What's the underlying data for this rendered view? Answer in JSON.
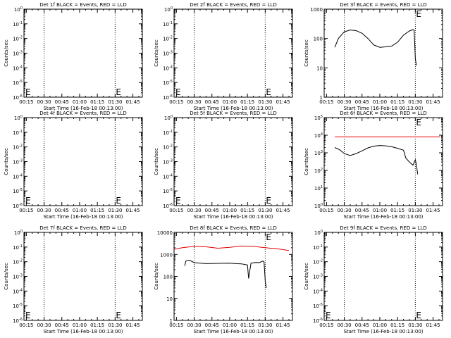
{
  "figure": {
    "xtick_labels": [
      "00:15",
      "00:30",
      "00:45",
      "01:00",
      "01:15",
      "01:30",
      "01:45"
    ],
    "xlabel": "Start Time (16-Feb-18 00:13:00)",
    "ylabel": "Counts/sec",
    "event_marker": "E"
  },
  "chart_data": [
    {
      "type": "line",
      "title": "Det 1f BLACK = Events, RED = LLD",
      "xlabel": "Start Time (16-Feb-18 00:13:00)",
      "ylabel": "Counts/sec",
      "xlim": [
        "00:13:00",
        "01:53:00"
      ],
      "yscale": "log",
      "ytick_labels": [
        "10^0",
        "10^-1",
        "10^-2",
        "10^-3",
        "10^-4",
        "10^-5",
        "10^-6"
      ],
      "series": []
    },
    {
      "type": "line",
      "title": "Det 2f BLACK = Events, RED = LLD",
      "xlabel": "Start Time (16-Feb-18 00:13:00)",
      "ylabel": "Counts/sec",
      "xlim": [
        "00:13:00",
        "01:53:00"
      ],
      "yscale": "log",
      "ytick_labels": [
        "10^0",
        "10^-1",
        "10^-2",
        "10^-3",
        "10^-4",
        "10^-5",
        "10^-6"
      ],
      "series": []
    },
    {
      "type": "line",
      "title": "Det 3f BLACK = Events, RED = LLD",
      "xlabel": "Start Time (16-Feb-18 00:13:00)",
      "ylabel": "Counts/sec",
      "xlim": [
        "00:13:00",
        "01:53:00"
      ],
      "yscale": "log",
      "ytick_labels": [
        "1",
        "10",
        "100",
        "1000"
      ],
      "series": [
        {
          "color": "#000000",
          "x": [
            "00:22",
            "00:25",
            "00:30",
            "00:35",
            "00:40",
            "00:45",
            "00:50",
            "00:55",
            "01:00",
            "01:05",
            "01:10",
            "01:15",
            "01:20",
            "01:25",
            "01:28",
            "01:29",
            "01:30",
            "01:31"
          ],
          "y": [
            50,
            100,
            170,
            195,
            185,
            150,
            100,
            60,
            50,
            52,
            55,
            75,
            130,
            180,
            200,
            190,
            20,
            12
          ]
        }
      ]
    },
    {
      "type": "line",
      "title": "Det 4f BLACK = Events, RED = LLD",
      "xlabel": "Start Time (16-Feb-18 00:13:00)",
      "ylabel": "Counts/sec",
      "xlim": [
        "00:13:00",
        "01:53:00"
      ],
      "yscale": "log",
      "ytick_labels": [
        "10^0",
        "10^-1",
        "10^-2",
        "10^-3",
        "10^-4",
        "10^-5",
        "10^-6"
      ],
      "series": []
    },
    {
      "type": "line",
      "title": "Det 5f BLACK = Events, RED = LLD",
      "xlabel": "Start Time (16-Feb-18 00:13:00)",
      "ylabel": "Counts/sec",
      "xlim": [
        "00:13:00",
        "01:53:00"
      ],
      "yscale": "log",
      "ytick_labels": [
        "10^0",
        "10^-1",
        "10^-2",
        "10^-3",
        "10^-4",
        "10^-5",
        "10^-6"
      ],
      "series": []
    },
    {
      "type": "line",
      "title": "Det 6f BLACK = Events, RED = LLD",
      "xlabel": "Start Time (16-Feb-18 00:13:00)",
      "ylabel": "Counts/sec",
      "xlim": [
        "00:13:00",
        "01:53:00"
      ],
      "yscale": "log",
      "ytick_labels": [
        "10^0",
        "10^1",
        "10^2",
        "10^3",
        "10^4",
        "10^5"
      ],
      "series": [
        {
          "color": "#e00000",
          "x": [
            "00:22",
            "01:51"
          ],
          "y": [
            8000,
            8000
          ]
        },
        {
          "color": "#000000",
          "x": [
            "00:22",
            "00:26",
            "00:30",
            "00:35",
            "00:40",
            "00:45",
            "00:50",
            "00:55",
            "01:00",
            "01:05",
            "01:10",
            "01:15",
            "01:20",
            "01:22",
            "01:25",
            "01:28",
            "01:30",
            "01:31",
            "01:32"
          ],
          "y": [
            2000,
            1500,
            900,
            700,
            900,
            1300,
            1900,
            2400,
            2600,
            2500,
            2200,
            1800,
            1400,
            500,
            300,
            200,
            400,
            200,
            60
          ]
        }
      ]
    },
    {
      "type": "line",
      "title": "Det 7f BLACK = Events, RED = LLD",
      "xlabel": "Start Time (16-Feb-18 00:13:00)",
      "ylabel": "Counts/sec",
      "xlim": [
        "00:13:00",
        "01:53:00"
      ],
      "yscale": "log",
      "ytick_labels": [
        "10^0",
        "10^-1",
        "10^-2",
        "10^-3",
        "10^-4",
        "10^-5",
        "10^-6"
      ],
      "series": []
    },
    {
      "type": "line",
      "title": "Det 8f BLACK = Events, RED = LLD",
      "xlabel": "Start Time (16-Feb-18 00:13:00)",
      "ylabel": "Counts/sec",
      "xlim": [
        "00:13:00",
        "01:53:00"
      ],
      "yscale": "log",
      "ytick_labels": [
        "1",
        "10",
        "100",
        "1000",
        "10000"
      ],
      "series": [
        {
          "color": "#e00000",
          "x": [
            "00:13",
            "00:20",
            "00:30",
            "00:40",
            "00:50",
            "01:00",
            "01:10",
            "01:20",
            "01:30",
            "01:40",
            "01:50"
          ],
          "y": [
            1700,
            2000,
            2300,
            2200,
            1900,
            2100,
            2400,
            2300,
            2000,
            1800,
            1500
          ]
        },
        {
          "color": "#000000",
          "x": [
            "00:22",
            "00:23",
            "00:26",
            "00:30",
            "00:40",
            "00:50",
            "01:00",
            "01:05",
            "01:10",
            "01:15",
            "01:16",
            "01:18",
            "01:22",
            "01:25",
            "01:28",
            "01:29",
            "01:30",
            "01:31"
          ],
          "y": [
            300,
            500,
            550,
            420,
            380,
            390,
            400,
            380,
            370,
            330,
            80,
            400,
            430,
            420,
            500,
            450,
            60,
            30
          ]
        }
      ]
    },
    {
      "type": "line",
      "title": "Det 9f BLACK = Events, RED = LLD",
      "xlabel": "Start Time (16-Feb-18 00:13:00)",
      "ylabel": "Counts/sec",
      "xlim": [
        "00:13:00",
        "01:53:00"
      ],
      "yscale": "log",
      "ytick_labels": [
        "10^0",
        "10^-1",
        "10^-2",
        "10^-3",
        "10^-4",
        "10^-5",
        "10^-6"
      ],
      "series": []
    }
  ]
}
